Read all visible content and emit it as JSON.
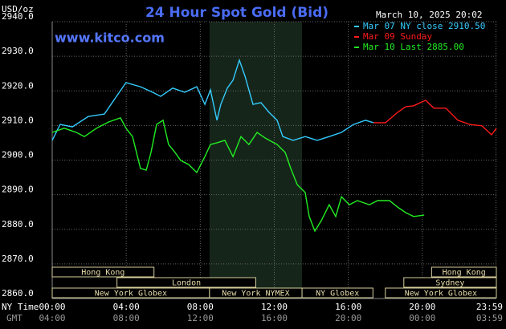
{
  "chart_data": {
    "type": "line",
    "title": "24 Hour Spot Gold (Bid)",
    "date": "March 10, 2025 20:02",
    "unit": "USD/oz",
    "site": "www.kitco.com",
    "xlabel": "NY Time",
    "x2label": "GMT",
    "xlim": [
      0,
      24
    ],
    "xticks": [
      {
        "value": 0,
        "label": "00:00"
      },
      {
        "value": 4,
        "label": "04:00"
      },
      {
        "value": 8,
        "label": "08:00"
      },
      {
        "value": 12,
        "label": "12:00"
      },
      {
        "value": 16,
        "label": "16:00"
      },
      {
        "value": 20,
        "label": "20:00"
      },
      {
        "value": 23.98,
        "label": "23:59"
      }
    ],
    "x2ticklabels": [
      "04:00",
      "08:00",
      "12:00",
      "16:00",
      "20:00",
      "00:00",
      "03:59"
    ],
    "ylim": [
      2860,
      2940
    ],
    "yticks": [
      {
        "value": 2860,
        "label": "2860.0"
      },
      {
        "value": 2870,
        "label": "2870.0"
      },
      {
        "value": 2880,
        "label": "2880.0"
      },
      {
        "value": 2890,
        "label": "2890.0"
      },
      {
        "value": 2900,
        "label": "2900.0"
      },
      {
        "value": 2910,
        "label": "2910.0"
      },
      {
        "value": 2920,
        "label": "2920.0"
      },
      {
        "value": 2930,
        "label": "2930.0"
      },
      {
        "value": 2940,
        "label": "2940.0"
      }
    ],
    "grid": true,
    "series": [
      {
        "name": "Mar 07 NY close 2910.50",
        "color": "#33ccff",
        "x": [
          0,
          0.43,
          1.09,
          1.95,
          2.82,
          3.47,
          3.99,
          4.77,
          5.43,
          5.86,
          6.51,
          7.16,
          7.81,
          8.25,
          8.55,
          8.9,
          9.11,
          9.46,
          9.77,
          10.11,
          10.42,
          10.85,
          11.28,
          11.72,
          12.15,
          12.46,
          13.02,
          13.67,
          14.32,
          14.97,
          15.63,
          16.28,
          16.93,
          17.36
        ],
        "values": [
          2905.7,
          2910.3,
          2909.6,
          2912.6,
          2913.3,
          2918.4,
          2922.4,
          2921.2,
          2919.6,
          2918.4,
          2920.8,
          2919.6,
          2921.2,
          2916.1,
          2920.3,
          2911.5,
          2916.1,
          2920.8,
          2923.1,
          2928.9,
          2924.2,
          2916.1,
          2916.6,
          2913.8,
          2911.5,
          2906.8,
          2905.7,
          2906.8,
          2905.7,
          2906.8,
          2908.0,
          2910.3,
          2911.5,
          2910.8
        ]
      },
      {
        "name": "Mar 09 Sunday",
        "color": "#ff1a1a",
        "x": [
          17.36,
          18.01,
          18.66,
          19.1,
          19.53,
          20.18,
          20.62,
          21.27,
          21.92,
          22.57,
          23.22,
          23.74,
          24.0
        ],
        "values": [
          2910.8,
          2910.8,
          2913.8,
          2915.4,
          2915.7,
          2917.3,
          2915.0,
          2915.0,
          2911.5,
          2910.3,
          2909.9,
          2907.3,
          2909.2
        ]
      },
      {
        "name": "Mar 10 Last 2885.00",
        "color": "#22ee22",
        "x": [
          0,
          0.65,
          1.3,
          1.74,
          2.39,
          3.04,
          3.69,
          3.99,
          4.34,
          4.77,
          5.08,
          5.34,
          5.64,
          5.99,
          6.29,
          6.64,
          6.94,
          7.38,
          7.81,
          8.25,
          8.55,
          8.9,
          9.33,
          9.77,
          10.2,
          10.63,
          11.07,
          11.5,
          12.15,
          12.59,
          12.89,
          13.24,
          13.67,
          13.89,
          14.19,
          14.54,
          14.97,
          15.32,
          15.63,
          16.06,
          16.49,
          17.14,
          17.58,
          18.23,
          18.66,
          19.1,
          19.53,
          20.1
        ],
        "values": [
          2908.0,
          2909.2,
          2908.0,
          2906.8,
          2909.2,
          2911.0,
          2912.2,
          2909.2,
          2906.8,
          2897.6,
          2897.1,
          2902.2,
          2910.3,
          2911.5,
          2904.5,
          2902.2,
          2899.9,
          2898.7,
          2896.4,
          2901.0,
          2904.5,
          2905.0,
          2905.7,
          2901.0,
          2906.8,
          2904.5,
          2908.0,
          2906.4,
          2904.5,
          2902.2,
          2897.6,
          2892.9,
          2890.6,
          2883.7,
          2879.5,
          2882.5,
          2887.1,
          2883.7,
          2889.4,
          2887.1,
          2888.3,
          2887.1,
          2888.3,
          2888.3,
          2886.4,
          2884.8,
          2883.7,
          2884.1
        ]
      }
    ],
    "sessions": [
      [
        {
          "label": "Hong Kong",
          "start": 0,
          "end": 5.5
        },
        {
          "label": "Hong Kong",
          "start": 20.5,
          "end": 24
        }
      ],
      [
        {
          "label": "London",
          "start": 3.5,
          "end": 11
        },
        {
          "label": "Sydney",
          "start": 19,
          "end": 24
        }
      ],
      [
        {
          "label": "New York Globex",
          "start": 0,
          "end": 8.5
        },
        {
          "label": "New York NYMEX",
          "start": 8.5,
          "end": 13.5
        },
        {
          "label": "NY Globex",
          "start": 13.5,
          "end": 17.33
        },
        {
          "label": "New York Globex",
          "start": 18,
          "end": 24
        }
      ]
    ]
  }
}
